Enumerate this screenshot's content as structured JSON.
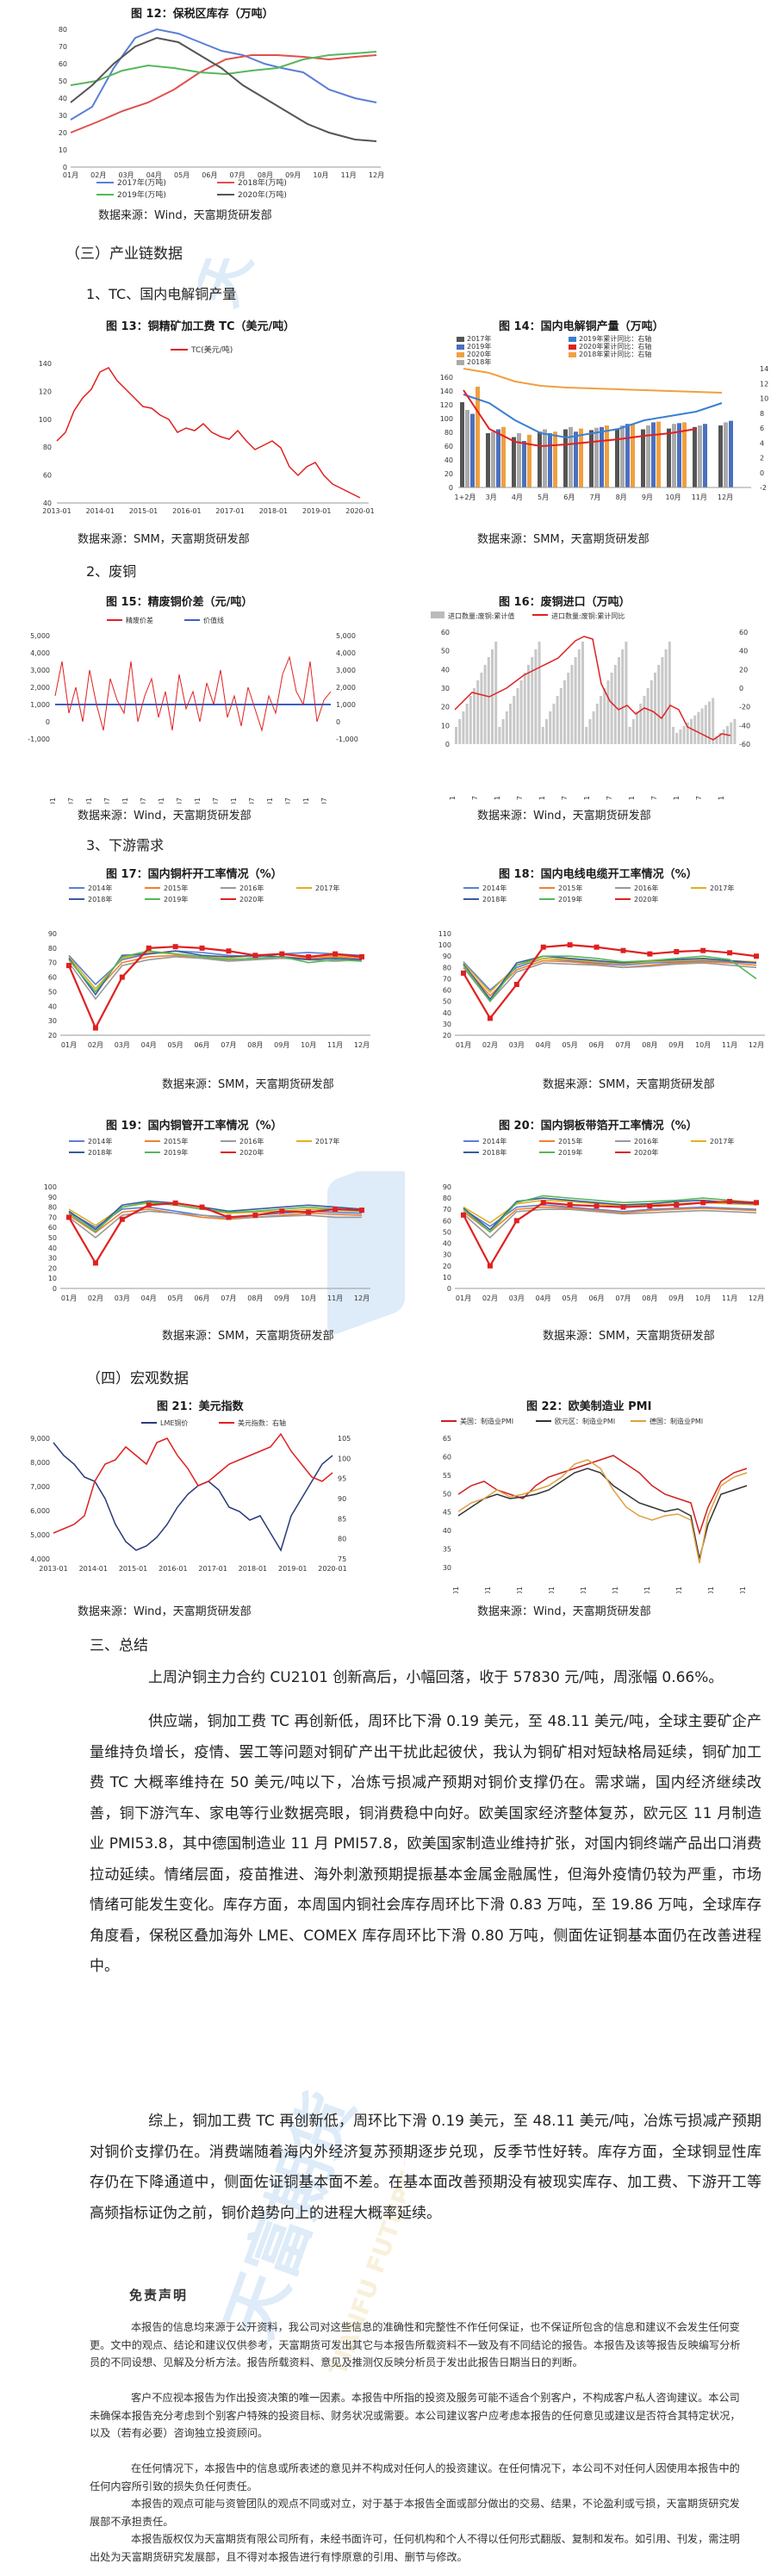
{
  "figures": {
    "fig12": {
      "caption": "图 12：保税区库存（万吨）",
      "source": "数据来源：Wind，天富期货研发部",
      "legend": [
        "2017年(万吨)",
        "2018年(万吨)",
        "2019年(万吨)",
        "2020年(万吨)"
      ],
      "months": [
        "01月",
        "02月",
        "03月",
        "04月",
        "05月",
        "06月",
        "07月",
        "08月",
        "09月",
        "10月",
        "11月",
        "12月"
      ],
      "yticks": [
        "80",
        "70",
        "60",
        "50",
        "40",
        "30",
        "20",
        "10",
        "0"
      ]
    },
    "fig13": {
      "caption": "图 13：铜精矿加工费 TC（美元/吨）",
      "source": "数据来源：SMM，天富期货研发部",
      "legend": [
        "TC(美元/吨)"
      ],
      "yticks": [
        "140",
        "120",
        "100",
        "80",
        "60",
        "40"
      ],
      "xticks": [
        "2013-01",
        "2014-01",
        "2015-01",
        "2016-01",
        "2017-01",
        "2018-01",
        "2019-01",
        "2020-01"
      ]
    },
    "fig14": {
      "caption": "图 14：国内电解铜产量（万吨）",
      "source": "数据来源：SMM，天富期货研发部",
      "legend": [
        "2017年",
        "2019年",
        "2020年",
        "2018年",
        "2019年累计同比：右轴",
        "2020年累计同比：右轴",
        "2018年累计同比：右轴"
      ],
      "xticks": [
        "1+2月",
        "3月",
        "4月",
        "5月",
        "6月",
        "7月",
        "8月",
        "9月",
        "10月",
        "11月",
        "12月"
      ],
      "yticks_left": [
        "160",
        "140",
        "120",
        "100",
        "80",
        "60",
        "40",
        "20",
        "0"
      ],
      "yticks_right": [
        "14",
        "12",
        "10",
        "8",
        "6",
        "4",
        "2",
        "0",
        "-2"
      ]
    },
    "fig15": {
      "caption": "图 15：精废铜价差（元/吨）",
      "source": "数据来源：Wind，天富期货研发部",
      "legend": [
        "精废价差",
        "价值线"
      ],
      "yticks_left": [
        "5,000",
        "4,000",
        "3,000",
        "2,000",
        "1,000",
        "0",
        "-1,000"
      ],
      "yticks_right": [
        "5,000",
        "4,000",
        "3,000",
        "2,000",
        "1,000",
        "0",
        "-1,000"
      ]
    },
    "fig16": {
      "caption": "图 16：废铜进口（万吨）",
      "source": "数据来源：Wind，天富期货研发部",
      "legend": [
        "进口数量:废铜:累计值",
        "进口数量:废铜:累计同比"
      ],
      "yticks_left": [
        "60",
        "50",
        "40",
        "30",
        "20",
        "10",
        "0"
      ],
      "yticks_right": [
        "60",
        "40",
        "20",
        "0",
        "-20",
        "-40",
        "-60"
      ]
    },
    "fig17": {
      "caption": "图 17：国内铜杆开工率情况（%）",
      "source": "数据来源：SMM，天富期货研发部",
      "legend": [
        "2014年",
        "2015年",
        "2016年",
        "2017年",
        "2018年",
        "2019年",
        "2020年"
      ],
      "months": [
        "01月",
        "02月",
        "03月",
        "04月",
        "05月",
        "06月",
        "07月",
        "08月",
        "09月",
        "10月",
        "11月",
        "12月"
      ],
      "yticks": [
        "90",
        "80",
        "70",
        "60",
        "50",
        "40",
        "30",
        "20"
      ]
    },
    "fig18": {
      "caption": "图 18：国内电线电缆开工率情况（%）",
      "source": "数据来源：SMM，天富期货研发部",
      "legend": [
        "2014年",
        "2015年",
        "2016年",
        "2017年",
        "2018年",
        "2019年",
        "2020年"
      ],
      "months": [
        "01月",
        "02月",
        "03月",
        "04月",
        "05月",
        "06月",
        "07月",
        "08月",
        "09月",
        "10月",
        "11月",
        "12月"
      ],
      "yticks": [
        "110",
        "100",
        "90",
        "80",
        "70",
        "60",
        "50",
        "40",
        "30",
        "20"
      ]
    },
    "fig19": {
      "caption": "图 19：国内铜管开工率情况（%）",
      "source": "数据来源：SMM，天富期货研发部",
      "legend": [
        "2014年",
        "2015年",
        "2016年",
        "2017年",
        "2018年",
        "2019年",
        "2020年"
      ],
      "months": [
        "01月",
        "02月",
        "03月",
        "04月",
        "05月",
        "06月",
        "07月",
        "08月",
        "09月",
        "10月",
        "11月",
        "12月"
      ],
      "yticks": [
        "100",
        "90",
        "80",
        "70",
        "60",
        "50",
        "40",
        "30",
        "20",
        "10",
        "0"
      ]
    },
    "fig20": {
      "caption": "图 20：国内铜板带箔开工率情况（%）",
      "source": "数据来源：SMM，天富期货研发部",
      "legend": [
        "2014年",
        "2015年",
        "2016年",
        "2017年",
        "2018年",
        "2019年",
        "2020年"
      ],
      "months": [
        "01月",
        "02月",
        "03月",
        "04月",
        "05月",
        "06月",
        "07月",
        "08月",
        "09月",
        "10月",
        "11月",
        "12月"
      ],
      "yticks": [
        "90",
        "80",
        "70",
        "60",
        "50",
        "40",
        "30",
        "20",
        "10",
        "0"
      ]
    },
    "fig21": {
      "caption": "图 21：美元指数",
      "source": "数据来源：Wind，天富期货研发部",
      "legend": [
        "LME铜价",
        "美元指数：右轴"
      ],
      "yticks_left": [
        "9,000",
        "8,000",
        "7,000",
        "6,000",
        "5,000",
        "4,000"
      ],
      "yticks_right": [
        "105",
        "100",
        "95",
        "90",
        "85",
        "80",
        "75"
      ],
      "xticks": [
        "2013-01",
        "2014-01",
        "2015-01",
        "2016-01",
        "2017-01",
        "2018-01",
        "2019-01",
        "2020-01"
      ]
    },
    "fig22": {
      "caption": "图 22：欧美制造业 PMI",
      "source": "数据来源：Wind，天富期货研发部",
      "legend": [
        "美国：制造业PMI",
        "欧元区：制造业PMI",
        "德国：制造业PMI"
      ],
      "yticks": [
        "65",
        "60",
        "55",
        "50",
        "45",
        "40",
        "35",
        "30"
      ]
    }
  },
  "sections": {
    "s3": "（三）产业链数据",
    "s3_1": "1、TC、国内电解铜产量",
    "s3_2": "2、废铜",
    "s3_3": "3、下游需求",
    "s4": "（四）宏观数据",
    "s5": "三、总结"
  },
  "summary": {
    "p1": "上周沪铜主力合约 CU2101 创新高后，小幅回落，收于 57830 元/吨，周涨幅 0.66%。",
    "p2": "供应端，铜加工费 TC 再创新低，周环比下滑 0.19 美元，至 48.11 美元/吨，全球主要矿企产量维持负增长，疫情、罢工等问题对铜矿产出干扰此起彼伏，我认为铜矿相对短缺格局延续，铜矿加工费 TC 大概率维持在 50 美元/吨以下，冶炼亏损减产预期对铜价支撑仍在。需求端，国内经济继续改善，铜下游汽车、家电等行业数据亮眼，铜消费稳中向好。欧美国家经济整体复苏，欧元区 11 月制造业 PMI53.8，其中德国制造业 11 月 PMI57.8，欧美国家制造业维持扩张，对国内铜终端产品出口消费拉动延续。情绪层面，疫苗推进、海外刺激预期提振基本金属金融属性，但海外疫情仍较为严重，市场情绪可能发生变化。库存方面，本周国内铜社会库存周环比下滑 0.83 万吨，至 19.86 万吨，全球库存角度看，保税区叠加海外 LME、COMEX 库存周环比下滑 0.80 万吨，侧面佐证铜基本面仍在改善进程中。",
    "p3": "综上，铜加工费 TC 再创新低，周环比下滑 0.19 美元，至 48.11 美元/吨，冶炼亏损减产预期对铜价支撑仍在。消费端随着海内外经济复苏预期逐步兑现，反季节性好转。库存方面，全球铜显性库存仍在下降通道中，侧面佐证铜基本面不差。在基本面改善预期没有被现实库存、加工费、下游开工等高频指标证伪之前，铜价趋势向上的进程大概率延续。"
  },
  "disclaimer": {
    "title": "免责声明",
    "p1": "本报告的信息均来源于公开资料，我公司对这些信息的准确性和完整性不作任何保证，也不保证所包含的信息和建议不会发生任何变更。文中的观点、结论和建议仅供参考，天富期货可发出其它与本报告所载资料不一致及有不同结论的报告。本报告及该等报告反映编写分析员的不同设想、见解及分析方法。报告所载资料、意见及推测仅反映分析员于发出此报告日期当日的判断。",
    "p2": "客户不应视本报告为作出投资决策的唯一因素。本报告中所指的投资及服务可能不适合个别客户，不构成客户私人咨询建议。本公司未确保本报告充分考虑到个别客户特殊的投资目标、财务状况或需要。本公司建议客户应考虑本报告的任何意见或建议是否符合其特定状况，以及（若有必要）咨询独立投资顾问。",
    "p3": "在任何情况下，本报告中的信息或所表述的意见并不构成对任何人的投资建议。在任何情况下，本公司不对任何人因使用本报告中的任何内容所引致的损失负任何责任。",
    "p4": "本报告的观点可能与资管团队的观点不同或对立，对于基于本报告全面或部分做出的交易、结果，不论盈利或亏损，天富期货研究发展部不承担责任。",
    "p5": "本报告版权仅为天富期货有限公司所有，未经书面许可，任何机构和个人不得以任何形式翻版、复制和发布。如引用、刊发，需注明出处为天富期货研究发展部，且不得对本报告进行有悖原意的引用、删节与修改。"
  },
  "watermark": {
    "brand": "天富期货",
    "latin": "TIANFU FUTURES"
  }
}
